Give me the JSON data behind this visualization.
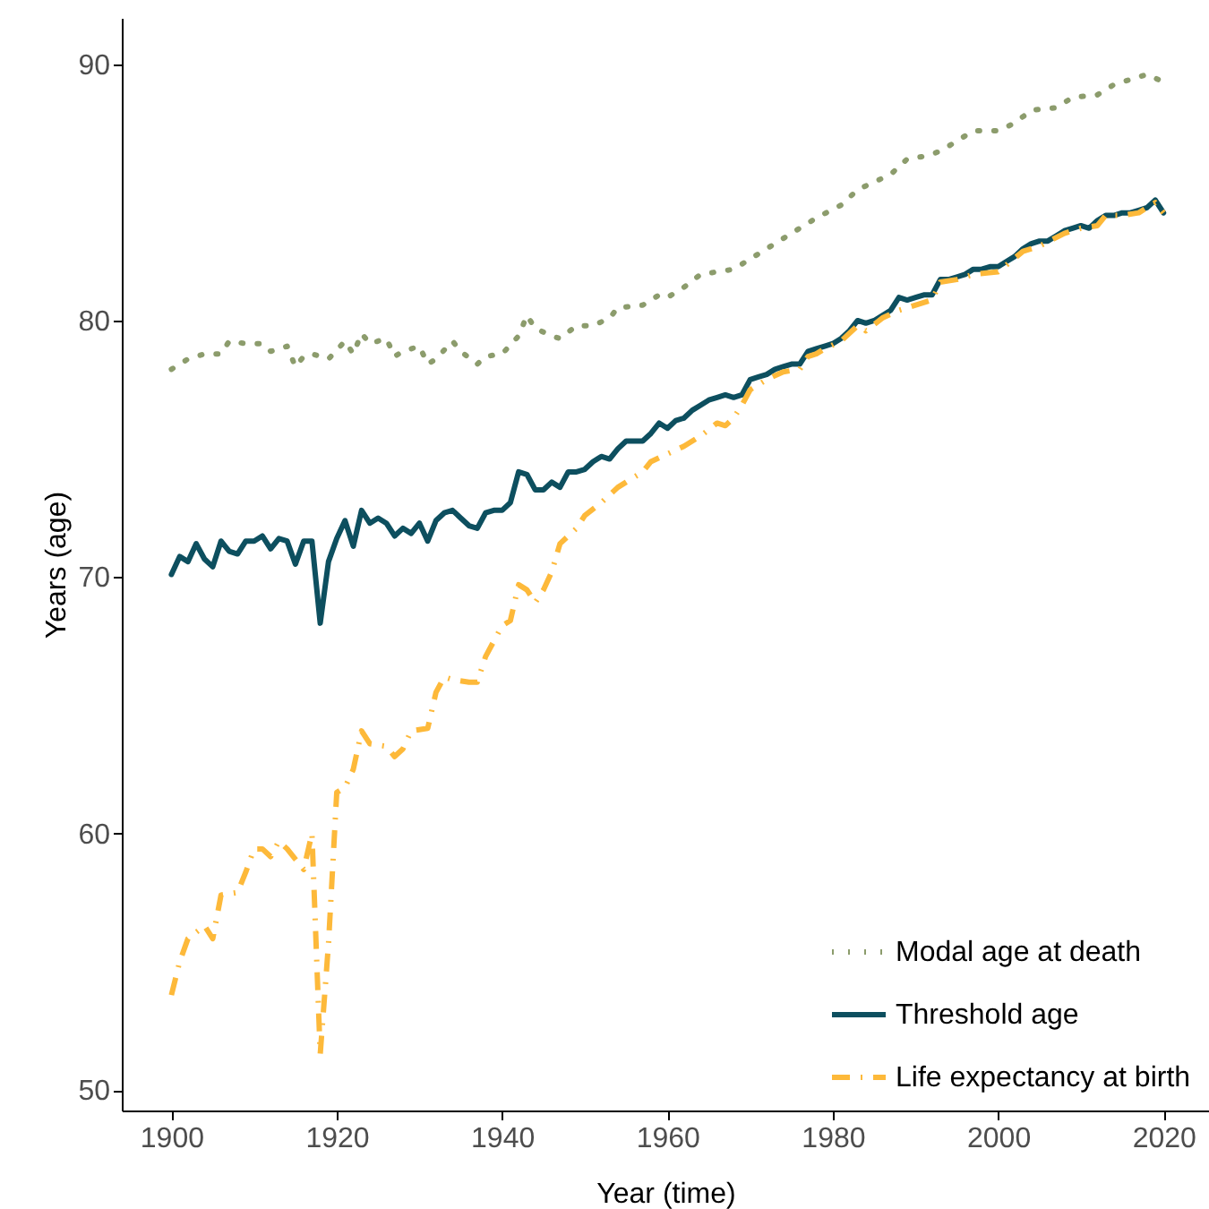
{
  "chart_data": {
    "type": "line",
    "xlabel": "Year (time)",
    "ylabel": "Years (age)",
    "xlim": [
      1894,
      2025.5
    ],
    "ylim": [
      49.2,
      91.8
    ],
    "xticks": [
      1900,
      1920,
      1940,
      1960,
      1980,
      2000,
      2020
    ],
    "yticks": [
      50,
      60,
      70,
      80,
      90
    ],
    "grid": false,
    "legend": "bottom right",
    "series": [
      {
        "name": "Modal age at death",
        "color": "#8c9c6c",
        "line_style": "dotted",
        "x": [
          1900,
          1902,
          1904,
          1906,
          1907,
          1909,
          1911,
          1912,
          1914,
          1915,
          1916,
          1917,
          1919,
          1921,
          1922,
          1923,
          1924,
          1926,
          1927,
          1928,
          1930,
          1931,
          1932,
          1934,
          1935,
          1937,
          1938,
          1940,
          1942,
          1943,
          1944,
          1946,
          1947,
          1949,
          1951,
          1953,
          1954,
          1957,
          1959,
          1960,
          1962,
          1964,
          1966,
          1968,
          1970,
          1972,
          1974,
          1976,
          1978,
          1981,
          1983,
          1985,
          1987,
          1989,
          1991,
          1993,
          1995,
          1997,
          2000,
          2002,
          2004,
          2007,
          2009,
          2012,
          2014,
          2016,
          2018,
          2020
        ],
        "values": [
          78.1,
          78.5,
          78.7,
          78.7,
          79.2,
          79.1,
          79.1,
          78.8,
          79.0,
          78.2,
          78.6,
          78.7,
          78.5,
          79.2,
          78.7,
          79.5,
          79.1,
          79.3,
          78.6,
          78.8,
          79.0,
          78.3,
          78.5,
          79.2,
          78.8,
          78.3,
          78.6,
          78.7,
          79.4,
          80.2,
          79.7,
          79.4,
          79.3,
          79.8,
          79.8,
          80.1,
          80.5,
          80.6,
          81.0,
          80.9,
          81.3,
          81.8,
          81.9,
          82.0,
          82.4,
          82.8,
          83.2,
          83.6,
          84.0,
          84.5,
          85.1,
          85.4,
          85.7,
          86.3,
          86.4,
          86.6,
          87.0,
          87.4,
          87.4,
          87.7,
          88.2,
          88.3,
          88.7,
          88.8,
          89.2,
          89.4,
          89.6,
          89.3
        ]
      },
      {
        "name": "Threshold age",
        "color": "#0d4f5f",
        "line_style": "solid",
        "x": [
          1900,
          1901,
          1902,
          1903,
          1904,
          1905,
          1906,
          1907,
          1908,
          1909,
          1910,
          1911,
          1912,
          1913,
          1914,
          1915,
          1916,
          1917,
          1918,
          1919,
          1920,
          1921,
          1922,
          1923,
          1924,
          1925,
          1926,
          1927,
          1928,
          1929,
          1930,
          1931,
          1932,
          1933,
          1934,
          1935,
          1936,
          1937,
          1938,
          1939,
          1940,
          1941,
          1942,
          1943,
          1944,
          1945,
          1946,
          1947,
          1948,
          1949,
          1950,
          1951,
          1952,
          1953,
          1954,
          1955,
          1956,
          1957,
          1958,
          1959,
          1960,
          1961,
          1962,
          1963,
          1964,
          1965,
          1966,
          1967,
          1968,
          1969,
          1970,
          1971,
          1972,
          1973,
          1974,
          1975,
          1976,
          1977,
          1978,
          1979,
          1980,
          1981,
          1982,
          1983,
          1984,
          1985,
          1986,
          1987,
          1988,
          1989,
          1990,
          1991,
          1992,
          1993,
          1994,
          1995,
          1996,
          1997,
          1998,
          1999,
          2000,
          2001,
          2002,
          2003,
          2004,
          2005,
          2006,
          2007,
          2008,
          2009,
          2010,
          2011,
          2012,
          2013,
          2014,
          2015,
          2016,
          2017,
          2018,
          2019,
          2020
        ],
        "values": [
          70.1,
          70.8,
          70.6,
          71.3,
          70.7,
          70.4,
          71.4,
          71.0,
          70.9,
          71.4,
          71.4,
          71.6,
          71.1,
          71.5,
          71.4,
          70.5,
          71.4,
          71.4,
          68.2,
          70.6,
          71.5,
          72.2,
          71.2,
          72.6,
          72.1,
          72.3,
          72.1,
          71.6,
          71.9,
          71.7,
          72.1,
          71.4,
          72.2,
          72.5,
          72.6,
          72.3,
          72.0,
          71.9,
          72.5,
          72.6,
          72.6,
          72.9,
          74.1,
          74.0,
          73.4,
          73.4,
          73.7,
          73.5,
          74.1,
          74.1,
          74.2,
          74.5,
          74.7,
          74.6,
          75.0,
          75.3,
          75.3,
          75.3,
          75.6,
          76.0,
          75.8,
          76.1,
          76.2,
          76.5,
          76.7,
          76.9,
          77.0,
          77.1,
          77.0,
          77.1,
          77.7,
          77.8,
          77.9,
          78.1,
          78.2,
          78.3,
          78.3,
          78.8,
          78.9,
          79.0,
          79.1,
          79.3,
          79.6,
          80.0,
          79.9,
          80.0,
          80.2,
          80.4,
          80.9,
          80.8,
          80.9,
          81.0,
          81.0,
          81.6,
          81.6,
          81.7,
          81.8,
          82.0,
          82.0,
          82.1,
          82.1,
          82.3,
          82.5,
          82.8,
          83.0,
          83.1,
          83.1,
          83.3,
          83.5,
          83.6,
          83.7,
          83.6,
          83.9,
          84.1,
          84.1,
          84.2,
          84.2,
          84.3,
          84.4,
          84.7,
          84.2
        ]
      },
      {
        "name": "Life expectancy at birth",
        "color": "#fdb93a",
        "line_style": "dashed",
        "x": [
          1900,
          1901,
          1902,
          1904,
          1905,
          1906,
          1908,
          1909,
          1910,
          1911,
          1912,
          1913,
          1914,
          1916,
          1917,
          1918,
          1919,
          1920,
          1921,
          1922,
          1923,
          1924,
          1926,
          1927,
          1928,
          1929,
          1931,
          1932,
          1933,
          1934,
          1936,
          1937,
          1938,
          1939,
          1940,
          1941,
          1942,
          1943,
          1944,
          1945,
          1946,
          1947,
          1948,
          1949,
          1950,
          1952,
          1954,
          1955,
          1957,
          1958,
          1960,
          1962,
          1964,
          1966,
          1967,
          1968,
          1969,
          1970,
          1972,
          1974,
          1976,
          1977,
          1978,
          1979,
          1981,
          1983,
          1984,
          1986,
          1988,
          1989,
          1992,
          1993,
          1995,
          1997,
          2000,
          2003,
          2005,
          2008,
          2010,
          2012,
          2013,
          2015,
          2017,
          2019,
          2020
        ],
        "values": [
          53.7,
          55.0,
          55.9,
          56.4,
          55.9,
          57.6,
          57.7,
          58.5,
          59.4,
          59.4,
          59.1,
          59.7,
          59.4,
          58.6,
          60.0,
          51.4,
          55.7,
          61.6,
          61.8,
          62.5,
          64.0,
          63.5,
          63.4,
          63.0,
          63.3,
          64.0,
          64.1,
          65.5,
          66.1,
          66.0,
          65.9,
          65.9,
          66.9,
          67.5,
          68.1,
          68.3,
          69.7,
          69.5,
          69.0,
          69.5,
          70.2,
          71.3,
          71.6,
          71.9,
          72.4,
          72.9,
          73.5,
          73.7,
          74.1,
          74.5,
          74.8,
          75.1,
          75.5,
          76.0,
          75.9,
          76.2,
          76.7,
          77.3,
          77.7,
          78.0,
          78.1,
          78.6,
          78.7,
          78.9,
          79.2,
          79.8,
          79.6,
          80.1,
          80.4,
          80.5,
          80.8,
          81.5,
          81.6,
          81.8,
          81.9,
          82.7,
          82.9,
          83.4,
          83.6,
          83.7,
          84.1,
          84.1,
          84.2,
          84.6,
          84.2
        ]
      }
    ]
  }
}
